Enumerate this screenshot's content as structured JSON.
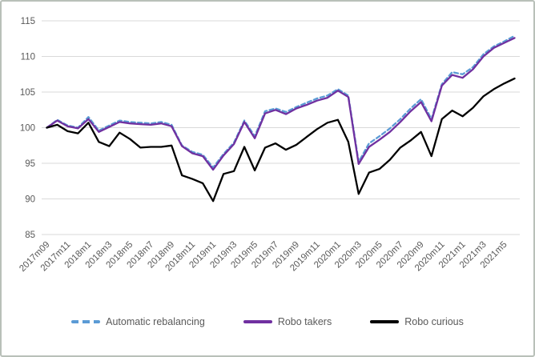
{
  "chart_data": {
    "type": "line",
    "title": "",
    "xlabel": "",
    "ylabel": "",
    "ylim": [
      85,
      115
    ],
    "y_ticks": [
      85,
      90,
      95,
      100,
      105,
      110,
      115
    ],
    "grid": true,
    "legend_position": "bottom",
    "x": [
      "2017m09",
      "2017m10",
      "2017m11",
      "2017m12",
      "2018m1",
      "2018m2",
      "2018m3",
      "2018m4",
      "2018m5",
      "2018m6",
      "2018m7",
      "2018m8",
      "2018m9",
      "2018m10",
      "2018m11",
      "2018m12",
      "2019m1",
      "2019m2",
      "2019m3",
      "2019m4",
      "2019m5",
      "2019m6",
      "2019m7",
      "2019m8",
      "2019m9",
      "2019m10",
      "2019m11",
      "2019m12",
      "2020m1",
      "2020m2",
      "2020m3",
      "2020m4",
      "2020m5",
      "2020m6",
      "2020m7",
      "2020m8",
      "2020m9",
      "2020m10",
      "2020m11",
      "2020m12",
      "2021m1",
      "2021m2",
      "2021m3",
      "2021m4",
      "2021m5",
      "2021m6"
    ],
    "x_tick_labels": [
      "2017m09",
      "2017m11",
      "2018m1",
      "2018m3",
      "2018m5",
      "2018m7",
      "2018m9",
      "2018m11",
      "2019m1",
      "2019m3",
      "2019m5",
      "2019m7",
      "2019m9",
      "2019m11",
      "2020m1",
      "2020m3",
      "2020m5",
      "2020m7",
      "2020m9",
      "2020m11",
      "2021m1",
      "2021m3",
      "2021m5"
    ],
    "series": [
      {
        "name": "Automatic rebalancing",
        "color": "#5B9BD5",
        "style": "dashed",
        "values": [
          100.0,
          101.1,
          100.3,
          100.0,
          101.5,
          99.6,
          100.3,
          101.0,
          100.8,
          100.7,
          100.6,
          100.8,
          100.4,
          97.5,
          96.6,
          96.2,
          94.4,
          96.3,
          97.9,
          101.0,
          98.8,
          102.3,
          102.7,
          102.2,
          102.9,
          103.5,
          104.1,
          104.5,
          105.4,
          104.5,
          95.2,
          97.8,
          98.8,
          99.9,
          101.2,
          102.7,
          104.0,
          101.2,
          106.1,
          107.8,
          107.5,
          108.5,
          110.3,
          111.4,
          112.1,
          112.9
        ]
      },
      {
        "name": "Robo takers",
        "color": "#7030A0",
        "style": "solid",
        "values": [
          100.0,
          101.0,
          100.2,
          99.9,
          101.2,
          99.4,
          100.1,
          100.8,
          100.6,
          100.5,
          100.4,
          100.6,
          100.2,
          97.4,
          96.4,
          96.0,
          94.1,
          96.1,
          97.7,
          100.8,
          98.5,
          102.0,
          102.5,
          101.9,
          102.7,
          103.2,
          103.8,
          104.2,
          105.2,
          104.3,
          94.9,
          97.3,
          98.3,
          99.4,
          100.8,
          102.3,
          103.6,
          100.9,
          105.9,
          107.4,
          107.0,
          108.2,
          110.0,
          111.2,
          111.9,
          112.6
        ]
      },
      {
        "name": "Robo curious",
        "color": "#000000",
        "style": "solid",
        "values": [
          100.0,
          100.4,
          99.5,
          99.2,
          100.7,
          98.0,
          97.4,
          99.3,
          98.4,
          97.2,
          97.3,
          97.3,
          97.5,
          93.3,
          92.8,
          92.2,
          89.7,
          93.5,
          93.9,
          97.3,
          94.0,
          97.2,
          97.8,
          96.9,
          97.6,
          98.7,
          99.8,
          100.7,
          101.1,
          98.0,
          90.7,
          93.7,
          94.2,
          95.5,
          97.2,
          98.2,
          99.4,
          96.0,
          101.2,
          102.4,
          101.6,
          102.8,
          104.4,
          105.4,
          106.2,
          106.9
        ]
      }
    ]
  },
  "colors": {
    "gridline": "#D9D9D9",
    "axis_text": "#595959",
    "frame_border": "#B9C0B9",
    "background": "#FFFFFF"
  }
}
